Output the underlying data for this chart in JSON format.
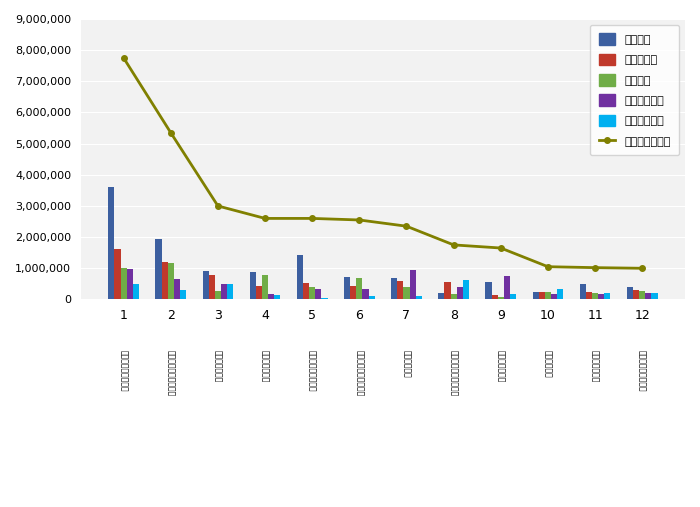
{
  "categories": [
    "1",
    "2",
    "3",
    "4",
    "5",
    "6",
    "7",
    "8",
    "9",
    "10",
    "11",
    "12"
  ],
  "xlabels": [
    "고용\n노동부\n복지\n단단",
    "한국\n산업\n안전\n보건\n공단",
    "한국\n고용\n정보원",
    "한국\n전통\n블렌디",
    "건강\n보험\n심사\n평가원",
    "한국\n산업\n안전\n보건\n공단",
    "한국\n고용\n보험",
    "한국\n사회\n적기업\n진흥원",
    "한국\n고용\n노동원",
    "노사\n발전\n재단",
    "화\n동인\n관리\n복지",
    "한국\n기술\n교육\n대학교"
  ],
  "참여지수": [
    3600000,
    1950000,
    900000,
    870000,
    1440000,
    730000,
    680000,
    200000,
    560000,
    250000,
    490000,
    390000
  ],
  "미디어지수": [
    1620000,
    1200000,
    780000,
    420000,
    540000,
    430000,
    580000,
    560000,
    140000,
    230000,
    230000,
    290000
  ],
  "소통지수": [
    1020000,
    1160000,
    270000,
    800000,
    390000,
    700000,
    400000,
    160000,
    90000,
    230000,
    200000,
    280000
  ],
  "커뮤니티지수": [
    980000,
    650000,
    490000,
    160000,
    320000,
    320000,
    950000,
    390000,
    760000,
    170000,
    170000,
    200000
  ],
  "사회공헌지수": [
    500000,
    310000,
    480000,
    150000,
    50000,
    120000,
    120000,
    620000,
    160000,
    330000,
    200000,
    200000
  ],
  "브랜드평판지수": [
    7750000,
    5350000,
    3000000,
    2600000,
    2600000,
    2550000,
    2350000,
    1750000,
    1650000,
    1050000,
    1020000,
    1000000
  ],
  "bar_colors": [
    "#3c5fa0",
    "#c0392b",
    "#70ad47",
    "#7030a0",
    "#00b0f0"
  ],
  "line_color": "#808000",
  "ylim": [
    0,
    9000000
  ],
  "yticks": [
    0,
    1000000,
    2000000,
    3000000,
    4000000,
    5000000,
    6000000,
    7000000,
    8000000,
    9000000
  ],
  "legend_labels": [
    "참여지수",
    "미디어지수",
    "소통지수",
    "커뮤니티지수",
    "사회공헌지수",
    "브랜드평판지수"
  ],
  "bg_color": "#f2f2f2"
}
